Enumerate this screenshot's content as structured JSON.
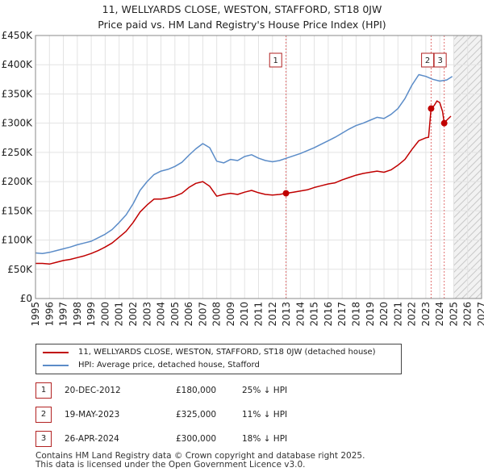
{
  "title_line1": "11, WELLYARDS CLOSE, WESTON, STAFFORD, ST18 0JW",
  "title_line2": "Price paid vs. HM Land Registry's House Price Index (HPI)",
  "chart_data": {
    "type": "line",
    "ylim": [
      0,
      450000
    ],
    "xlim": [
      1995,
      2027
    ],
    "y_ticks": [
      0,
      50000,
      100000,
      150000,
      200000,
      250000,
      300000,
      350000,
      400000,
      450000
    ],
    "y_tick_labels": [
      "£0",
      "£50K",
      "£100K",
      "£150K",
      "£200K",
      "£250K",
      "£300K",
      "£350K",
      "£400K",
      "£450K"
    ],
    "x_tick_labels": [
      "1995",
      "1996",
      "1997",
      "1998",
      "1999",
      "2000",
      "2001",
      "2002",
      "2003",
      "2004",
      "2005",
      "2006",
      "2007",
      "2008",
      "2009",
      "2010",
      "2011",
      "2012",
      "2013",
      "2014",
      "2015",
      "2016",
      "2017",
      "2018",
      "2019",
      "2020",
      "2021",
      "2022",
      "2023",
      "2024",
      "2025",
      "2026",
      "2027"
    ],
    "shaded_range": [
      2012.97,
      2013.0
    ],
    "forecast_start": 2025.0,
    "series": [
      {
        "name": "11, WELLYARDS CLOSE, WESTON, STAFFORD, ST18 0JW (detached house)",
        "color": "#c00000",
        "x": [
          1995.0,
          1995.5,
          1996.0,
          1996.5,
          1997.0,
          1997.5,
          1998.0,
          1998.5,
          1999.0,
          1999.5,
          2000.0,
          2000.5,
          2001.0,
          2001.5,
          2002.0,
          2002.5,
          2003.0,
          2003.5,
          2004.0,
          2004.5,
          2005.0,
          2005.5,
          2006.0,
          2006.5,
          2007.0,
          2007.5,
          2008.0,
          2008.5,
          2009.0,
          2009.5,
          2010.0,
          2010.5,
          2011.0,
          2011.5,
          2012.0,
          2012.5,
          2012.97,
          2013.5,
          2014.0,
          2014.5,
          2015.0,
          2015.5,
          2016.0,
          2016.5,
          2017.0,
          2017.5,
          2018.0,
          2018.5,
          2019.0,
          2019.5,
          2020.0,
          2020.5,
          2021.0,
          2021.5,
          2022.0,
          2022.5,
          2023.0,
          2023.2,
          2023.38,
          2023.6,
          2023.8,
          2024.0,
          2024.2,
          2024.32,
          2024.5,
          2024.8
        ],
        "values": [
          60000,
          60000,
          59000,
          62000,
          65000,
          67000,
          70000,
          73000,
          77000,
          82000,
          88000,
          95000,
          105000,
          115000,
          130000,
          148000,
          160000,
          170000,
          170000,
          172000,
          175000,
          180000,
          190000,
          197000,
          200000,
          192000,
          175000,
          178000,
          180000,
          178000,
          182000,
          185000,
          181000,
          178000,
          177000,
          178000,
          180000,
          182000,
          184000,
          186000,
          190000,
          193000,
          196000,
          198000,
          203000,
          207000,
          211000,
          214000,
          216000,
          218000,
          216000,
          220000,
          228000,
          238000,
          255000,
          270000,
          275000,
          276000,
          325000,
          330000,
          338000,
          335000,
          320000,
          300000,
          305000,
          312000
        ]
      },
      {
        "name": "HPI: Average price, detached house, Stafford",
        "color": "#5b8cc8",
        "x": [
          1995.0,
          1995.5,
          1996.0,
          1996.5,
          1997.0,
          1997.5,
          1998.0,
          1998.5,
          1999.0,
          1999.5,
          2000.0,
          2000.5,
          2001.0,
          2001.5,
          2002.0,
          2002.5,
          2003.0,
          2003.5,
          2004.0,
          2004.5,
          2005.0,
          2005.5,
          2006.0,
          2006.5,
          2007.0,
          2007.5,
          2008.0,
          2008.5,
          2009.0,
          2009.5,
          2010.0,
          2010.5,
          2011.0,
          2011.5,
          2012.0,
          2012.5,
          2013.0,
          2013.5,
          2014.0,
          2014.5,
          2015.0,
          2015.5,
          2016.0,
          2016.5,
          2017.0,
          2017.5,
          2018.0,
          2018.5,
          2019.0,
          2019.5,
          2020.0,
          2020.5,
          2021.0,
          2021.5,
          2022.0,
          2022.5,
          2023.0,
          2023.5,
          2024.0,
          2024.5,
          2024.9
        ],
        "values": [
          78000,
          77000,
          79000,
          82000,
          85000,
          88000,
          92000,
          95000,
          98000,
          104000,
          110000,
          118000,
          130000,
          143000,
          162000,
          185000,
          200000,
          212000,
          218000,
          221000,
          226000,
          233000,
          245000,
          256000,
          265000,
          258000,
          235000,
          232000,
          238000,
          236000,
          243000,
          246000,
          240000,
          236000,
          234000,
          236000,
          240000,
          244000,
          248000,
          253000,
          258000,
          264000,
          270000,
          276000,
          283000,
          290000,
          296000,
          300000,
          305000,
          310000,
          308000,
          315000,
          325000,
          342000,
          365000,
          383000,
          380000,
          375000,
          372000,
          374000,
          380000
        ]
      }
    ],
    "sale_markers": [
      {
        "label": "1",
        "x": 2012.97,
        "value": 180000,
        "box_x": 2012.2
      },
      {
        "label": "2",
        "x": 2023.38,
        "value": 325000,
        "box_x": 2023.1
      },
      {
        "label": "3",
        "x": 2024.32,
        "value": 300000,
        "box_x": 2024.0
      }
    ]
  },
  "legend": {
    "property_label": "11, WELLYARDS CLOSE, WESTON, STAFFORD, ST18 0JW (detached house)",
    "hpi_label": "HPI: Average price, detached house, Stafford"
  },
  "sales": [
    {
      "num": "1",
      "date": "20-DEC-2012",
      "price": "£180,000",
      "hpi": "25% ↓ HPI"
    },
    {
      "num": "2",
      "date": "19-MAY-2023",
      "price": "£325,000",
      "hpi": "11% ↓ HPI"
    },
    {
      "num": "3",
      "date": "26-APR-2024",
      "price": "£300,000",
      "hpi": "18% ↓ HPI"
    }
  ],
  "footer_line1": "Contains HM Land Registry data © Crown copyright and database right 2025.",
  "footer_line2": "This data is licensed under the Open Government Licence v3.0."
}
